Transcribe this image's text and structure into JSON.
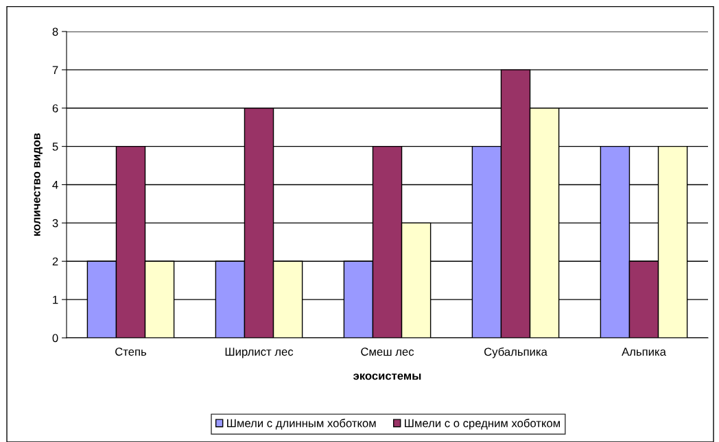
{
  "chart_data": {
    "type": "bar",
    "xlabel": "экосистемы",
    "ylabel": "количество видов",
    "categories": [
      "Степь",
      "Ширлист лес",
      "Смеш лес",
      "Субальпика",
      "Альпика"
    ],
    "series": [
      {
        "name": "Шмели с длинным хоботком",
        "color": "#9999ff",
        "values": [
          2,
          2,
          2,
          5,
          5
        ]
      },
      {
        "name": "Шмели с о средним хоботком",
        "color": "#993366",
        "values": [
          5,
          6,
          5,
          7,
          2
        ]
      },
      {
        "color": "#ffffcc",
        "values": [
          2,
          2,
          3,
          6,
          5
        ]
      }
    ],
    "ylim": [
      0,
      8
    ],
    "yticks": [
      0,
      1,
      2,
      3,
      4,
      5,
      6,
      7,
      8
    ],
    "grid": "y",
    "legend": "bottom"
  }
}
